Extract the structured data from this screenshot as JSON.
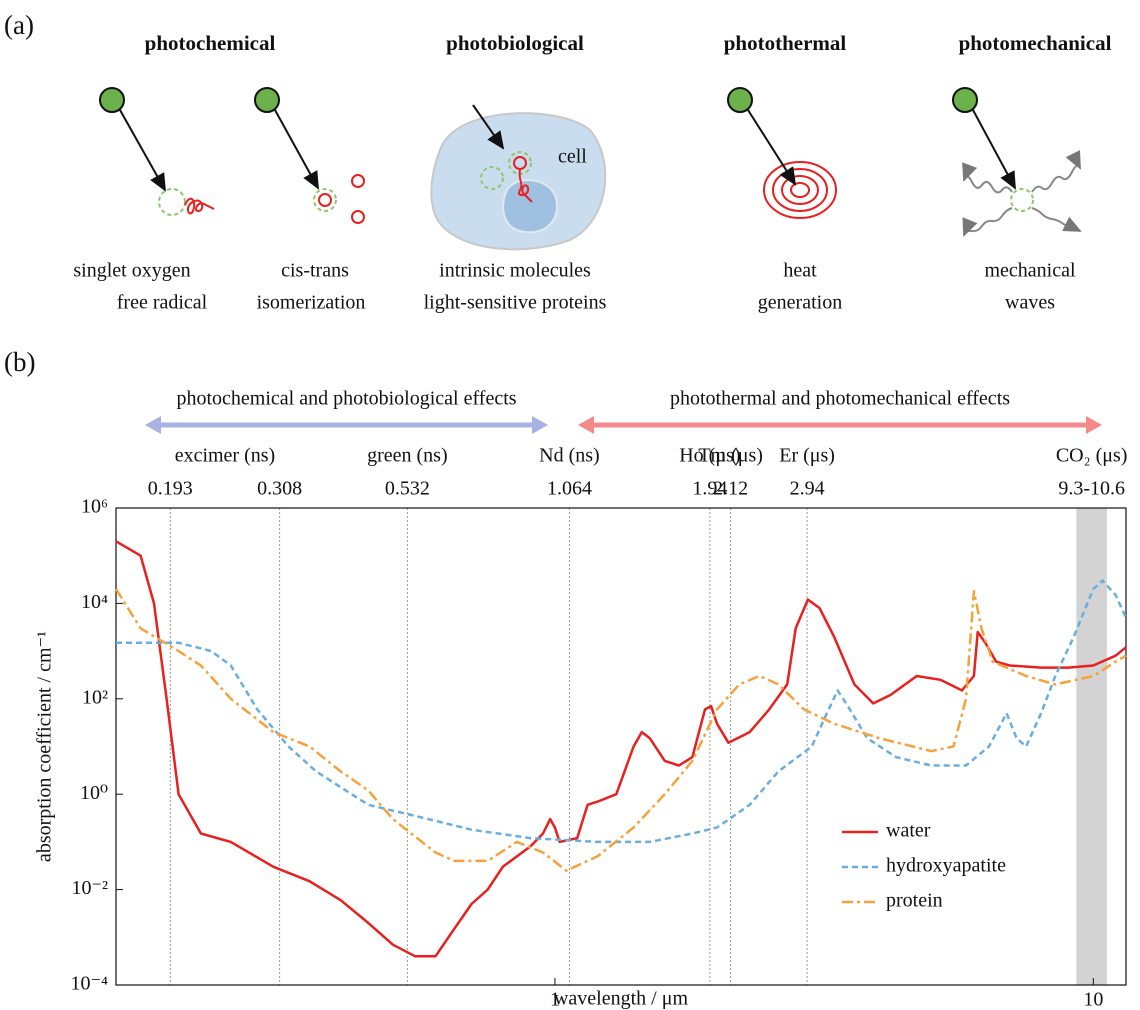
{
  "panel_a": {
    "label": "(a)",
    "headings": [
      "photochemical",
      "photobiological",
      "photothermal",
      "photomechanical"
    ],
    "cell_label": "cell",
    "captions": [
      [
        "singlet oxygen",
        "free radical"
      ],
      [
        "cis-trans",
        "isomerization"
      ],
      [
        "intrinsic molecules",
        "light-sensitive proteins"
      ],
      [
        "heat",
        "generation"
      ],
      [
        "mechanical",
        "waves"
      ]
    ]
  },
  "chart_data": {
    "type": "line",
    "panel_label": "(b)",
    "xlabel": "wavelength / μm",
    "ylabel": "absorption coefficient / cm⁻¹",
    "xscale": "log",
    "yscale": "log",
    "xlim": [
      0.153,
      11.5
    ],
    "ylim": [
      0.0001,
      1000000
    ],
    "xticks": [
      1,
      10
    ],
    "yticks": [
      {
        "value": 0.0001,
        "label": "10⁻⁴"
      },
      {
        "value": 0.01,
        "label": "10⁻²"
      },
      {
        "value": 1,
        "label": "10⁰"
      },
      {
        "value": 100,
        "label": "10²"
      },
      {
        "value": 10000,
        "label": "10⁴"
      },
      {
        "value": 1000000,
        "label": "10⁶"
      }
    ],
    "effects": [
      {
        "label": "photochemical and photobiological effects",
        "color": "#a9b3e3"
      },
      {
        "label": "photothermal and photomechanical effects",
        "color": "#f4898b"
      }
    ],
    "lasers": [
      {
        "name": "excimer (ns)",
        "lines": [
          0.193,
          0.308
        ]
      },
      {
        "name": "green (ns)",
        "lines": [
          0.532
        ]
      },
      {
        "name": "Nd (ns)",
        "lines": [
          1.064
        ]
      },
      {
        "name": "Ho (μs)",
        "lines": [
          1.94
        ]
      },
      {
        "name": "Tm (μs)",
        "lines": [
          2.12
        ]
      },
      {
        "name": "Er (μs)",
        "lines": [
          2.94
        ]
      },
      {
        "name": "CO₂ (μs)",
        "band": {
          "value": [
            9.3,
            10.6
          ],
          "label": "9.3-10.6"
        }
      }
    ],
    "legend": "lower right",
    "series": [
      {
        "name": "water",
        "color": "#e8211f",
        "dash": "solid",
        "x": [
          0.153,
          0.17,
          0.18,
          0.19,
          0.2,
          0.22,
          0.25,
          0.3,
          0.35,
          0.4,
          0.45,
          0.5,
          0.55,
          0.6,
          0.65,
          0.7,
          0.75,
          0.8,
          0.9,
          0.95,
          0.98,
          1.0,
          1.02,
          1.1,
          1.15,
          1.2,
          1.3,
          1.4,
          1.45,
          1.5,
          1.6,
          1.7,
          1.8,
          1.9,
          1.95,
          2.0,
          2.1,
          2.3,
          2.5,
          2.7,
          2.8,
          2.95,
          3.1,
          3.3,
          3.6,
          3.9,
          4.2,
          4.7,
          5.2,
          5.7,
          6.0,
          6.1,
          6.3,
          6.6,
          7.0,
          8,
          9,
          10,
          11,
          11.5
        ],
        "values": [
          200000,
          100000,
          10000,
          100,
          1,
          0.15,
          0.1,
          0.03,
          0.015,
          0.006,
          0.002,
          0.0007,
          0.0004,
          0.0004,
          0.0015,
          0.005,
          0.01,
          0.03,
          0.08,
          0.15,
          0.3,
          0.2,
          0.1,
          0.12,
          0.6,
          0.7,
          1,
          10,
          20,
          15,
          5,
          4,
          6,
          60,
          70,
          30,
          12,
          20,
          60,
          200,
          3000,
          12000,
          8000,
          2000,
          200,
          80,
          120,
          300,
          250,
          150,
          300,
          2500,
          1500,
          600,
          500,
          450,
          450,
          500,
          800,
          1200
        ]
      },
      {
        "name": "hydroxyapatite",
        "color": "#6aaee0",
        "dash": "dashed",
        "x": [
          0.153,
          0.2,
          0.23,
          0.25,
          0.28,
          0.32,
          0.36,
          0.45,
          0.55,
          0.7,
          0.9,
          1.2,
          1.5,
          1.8,
          2.0,
          2.3,
          2.6,
          3.0,
          3.2,
          3.35,
          3.5,
          3.8,
          4.3,
          5.0,
          5.8,
          6.4,
          6.9,
          7.2,
          7.5,
          8.0,
          8.5,
          9.2,
          10.0,
          10.4,
          11.0,
          11.5
        ],
        "values": [
          1500,
          1500,
          1000,
          500,
          60,
          10,
          3,
          0.6,
          0.35,
          0.18,
          0.12,
          0.1,
          0.1,
          0.15,
          0.2,
          0.6,
          3,
          10,
          50,
          150,
          70,
          15,
          6,
          4,
          4,
          10,
          50,
          15,
          10,
          50,
          300,
          2000,
          20000,
          30000,
          15000,
          5000
        ]
      },
      {
        "name": "protein",
        "color": "#f5a23c",
        "dash": "dashdot",
        "x": [
          0.153,
          0.17,
          0.2,
          0.22,
          0.25,
          0.3,
          0.35,
          0.4,
          0.45,
          0.5,
          0.6,
          0.65,
          0.75,
          0.85,
          0.95,
          1.05,
          1.2,
          1.4,
          1.6,
          1.8,
          2.0,
          2.2,
          2.4,
          2.6,
          2.9,
          3.3,
          4.0,
          5.0,
          5.5,
          5.8,
          6.0,
          6.2,
          6.5,
          7.5,
          8.5,
          10,
          11,
          11.5
        ],
        "values": [
          20000,
          3000,
          1000,
          500,
          100,
          20,
          10,
          3,
          1.2,
          0.3,
          0.06,
          0.04,
          0.04,
          0.1,
          0.06,
          0.025,
          0.05,
          0.2,
          1,
          5,
          60,
          200,
          300,
          200,
          60,
          30,
          15,
          8,
          10,
          100,
          18000,
          3000,
          600,
          300,
          200,
          300,
          600,
          800
        ]
      }
    ]
  }
}
